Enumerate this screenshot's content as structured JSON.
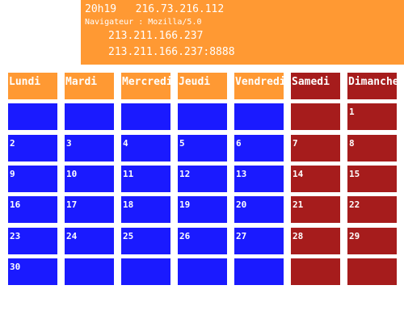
{
  "info": {
    "time": "20h19",
    "ip": "216.73.216.112",
    "navigator": "Navigateur : Mozilla/5.0",
    "host_ip": "213.211.166.237",
    "host_ip_port": "213.211.166.237:8888"
  },
  "calendar": {
    "headers": [
      "Lundi",
      "Mardi",
      "Mercredi",
      "Jeudi",
      "Vendredi",
      "Samedi",
      "Dimanche"
    ],
    "weeks": [
      [
        "",
        "",
        "",
        "",
        "",
        "",
        "1"
      ],
      [
        "2",
        "3",
        "4",
        "5",
        "6",
        "7",
        "8"
      ],
      [
        "9",
        "10",
        "11",
        "12",
        "13",
        "14",
        "15"
      ],
      [
        "16",
        "17",
        "18",
        "19",
        "20",
        "21",
        "22"
      ],
      [
        "23",
        "24",
        "25",
        "26",
        "27",
        "28",
        "29"
      ],
      [
        "30",
        "",
        "",
        "",
        "",
        "",
        ""
      ]
    ]
  },
  "colors": {
    "banner": "#FF9933",
    "weekday": "#1A1AFF",
    "weekend": "#A61C1C"
  }
}
